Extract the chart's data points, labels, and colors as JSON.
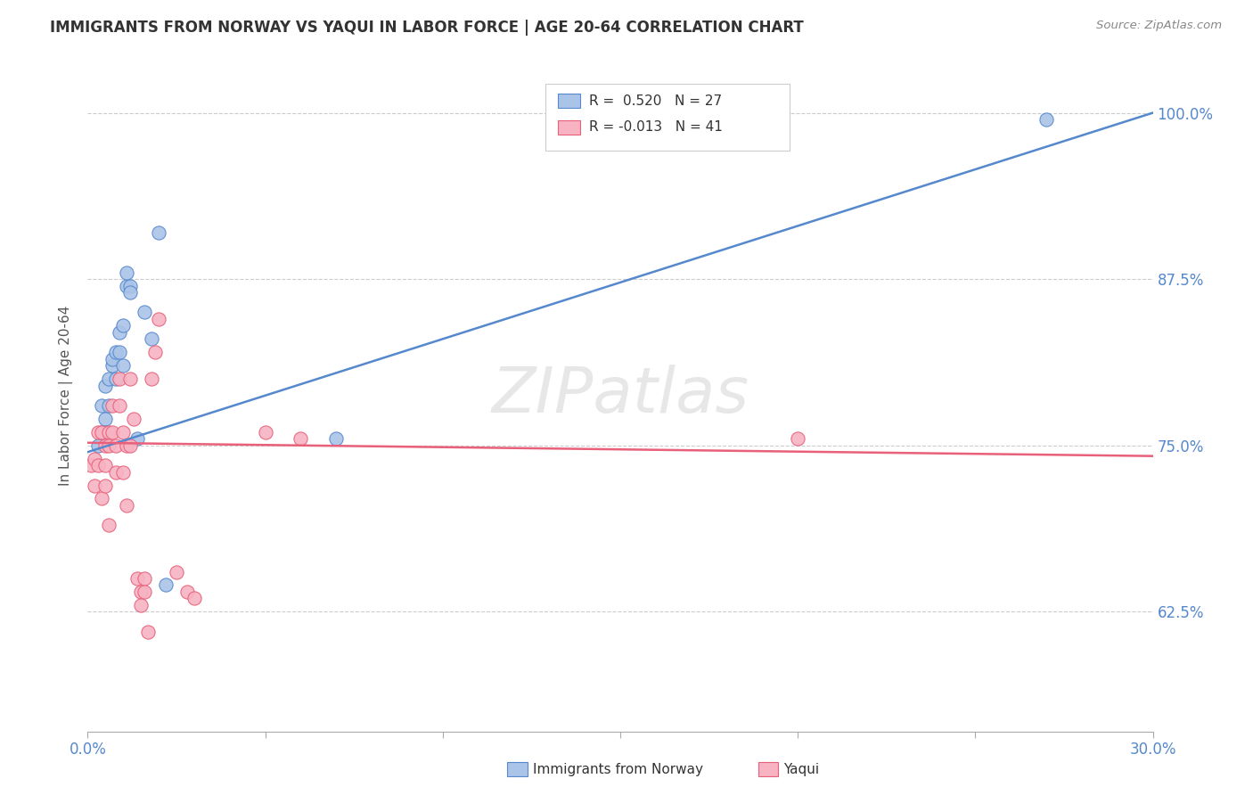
{
  "title": "IMMIGRANTS FROM NORWAY VS YAQUI IN LABOR FORCE | AGE 20-64 CORRELATION CHART",
  "source": "Source: ZipAtlas.com",
  "ylabel": "In Labor Force | Age 20-64",
  "ytick_labels": [
    "62.5%",
    "75.0%",
    "87.5%",
    "100.0%"
  ],
  "ytick_values": [
    0.625,
    0.75,
    0.875,
    1.0
  ],
  "xmin": 0.0,
  "xmax": 0.3,
  "ymin": 0.535,
  "ymax": 1.04,
  "norway_color": "#aac4e8",
  "yaqui_color": "#f7b3c2",
  "norway_line_color": "#5588cc",
  "yaqui_line_color": "#e8607a",
  "watermark": "ZIPatlas",
  "norway_scatter_x": [
    0.003,
    0.004,
    0.004,
    0.005,
    0.005,
    0.005,
    0.006,
    0.006,
    0.007,
    0.007,
    0.008,
    0.008,
    0.009,
    0.009,
    0.01,
    0.01,
    0.011,
    0.011,
    0.012,
    0.012,
    0.014,
    0.016,
    0.018,
    0.02,
    0.022,
    0.07,
    0.27
  ],
  "norway_scatter_y": [
    0.75,
    0.76,
    0.78,
    0.77,
    0.76,
    0.795,
    0.8,
    0.78,
    0.81,
    0.815,
    0.82,
    0.8,
    0.835,
    0.82,
    0.81,
    0.84,
    0.87,
    0.88,
    0.87,
    0.865,
    0.755,
    0.85,
    0.83,
    0.91,
    0.645,
    0.755,
    0.995
  ],
  "yaqui_scatter_x": [
    0.001,
    0.002,
    0.002,
    0.003,
    0.003,
    0.004,
    0.004,
    0.005,
    0.005,
    0.005,
    0.006,
    0.006,
    0.006,
    0.007,
    0.007,
    0.008,
    0.008,
    0.009,
    0.009,
    0.01,
    0.01,
    0.011,
    0.011,
    0.012,
    0.012,
    0.013,
    0.014,
    0.015,
    0.015,
    0.016,
    0.016,
    0.017,
    0.018,
    0.019,
    0.02,
    0.025,
    0.028,
    0.03,
    0.05,
    0.06,
    0.2
  ],
  "yaqui_scatter_y": [
    0.735,
    0.74,
    0.72,
    0.735,
    0.76,
    0.76,
    0.71,
    0.75,
    0.735,
    0.72,
    0.76,
    0.75,
    0.69,
    0.78,
    0.76,
    0.75,
    0.73,
    0.8,
    0.78,
    0.76,
    0.73,
    0.75,
    0.705,
    0.8,
    0.75,
    0.77,
    0.65,
    0.64,
    0.63,
    0.65,
    0.64,
    0.61,
    0.8,
    0.82,
    0.845,
    0.655,
    0.64,
    0.635,
    0.76,
    0.755,
    0.755
  ],
  "norway_trendline_x": [
    0.0,
    0.3
  ],
  "norway_trendline_y": [
    0.745,
    1.0
  ],
  "yaqui_trendline_x": [
    0.0,
    0.3
  ],
  "yaqui_trendline_y": [
    0.752,
    0.742
  ],
  "legend_norway_r": "R =  0.520",
  "legend_norway_n": "N = 27",
  "legend_yaqui_r": "R = -0.013",
  "legend_yaqui_n": "N = 41"
}
